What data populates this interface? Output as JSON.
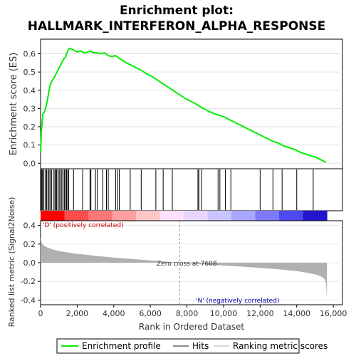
{
  "title_line1": "Enrichment plot:",
  "title_line2": "HALLMARK_INTERFERON_ALPHA_RESPONSE",
  "chart_data": [
    {
      "type": "line",
      "name": "enrichment-score-panel",
      "ylabel": "Enrichment score (ES)",
      "xlim": [
        0,
        16500
      ],
      "ylim": [
        -0.03,
        0.68
      ],
      "yticks": [
        "0.0",
        "0.1",
        "0.2",
        "0.3",
        "0.4",
        "0.5",
        "0.6"
      ],
      "ytick_values": [
        0.0,
        0.1,
        0.2,
        0.3,
        0.4,
        0.5,
        0.6
      ],
      "series": [
        {
          "name": "Enrichment profile",
          "color": "#00ee00",
          "x": [
            0,
            40,
            80,
            120,
            200,
            300,
            380,
            450,
            520,
            620,
            750,
            850,
            950,
            1050,
            1150,
            1250,
            1350,
            1430,
            1500,
            1600,
            1800,
            2000,
            2200,
            2400,
            2600,
            2700,
            2900,
            3100,
            3300,
            3500,
            3700,
            3900,
            4100,
            4300,
            4600,
            4900,
            5200,
            5500,
            5800,
            6100,
            6400,
            6700,
            7000,
            7300,
            7608,
            7900,
            8200,
            8500,
            8800,
            9100,
            9400,
            9700,
            10000,
            10300,
            10600,
            10900,
            11200,
            11500,
            11800,
            12100,
            12400,
            12700,
            13000,
            13300,
            13600,
            13900,
            14200,
            14500,
            14800,
            15000,
            15300,
            15600
          ],
          "y": [
            0.06,
            0.17,
            0.22,
            0.27,
            0.28,
            0.31,
            0.35,
            0.39,
            0.43,
            0.45,
            0.47,
            0.49,
            0.51,
            0.53,
            0.55,
            0.57,
            0.58,
            0.6,
            0.62,
            0.63,
            0.62,
            0.61,
            0.615,
            0.605,
            0.61,
            0.615,
            0.605,
            0.605,
            0.6,
            0.605,
            0.59,
            0.585,
            0.59,
            0.575,
            0.555,
            0.54,
            0.525,
            0.51,
            0.49,
            0.475,
            0.455,
            0.435,
            0.415,
            0.395,
            0.375,
            0.355,
            0.34,
            0.325,
            0.305,
            0.29,
            0.275,
            0.265,
            0.255,
            0.24,
            0.225,
            0.21,
            0.195,
            0.18,
            0.165,
            0.15,
            0.135,
            0.12,
            0.11,
            0.095,
            0.085,
            0.075,
            0.06,
            0.05,
            0.04,
            0.035,
            0.02,
            0.005
          ]
        }
      ]
    },
    {
      "type": "bar",
      "name": "hits-panel",
      "series": [
        {
          "name": "Hits",
          "x": [
            30,
            70,
            110,
            180,
            260,
            330,
            400,
            460,
            520,
            600,
            700,
            780,
            830,
            880,
            950,
            1020,
            1100,
            1160,
            1230,
            1300,
            1360,
            1420,
            1480,
            1540,
            1800,
            2300,
            2700,
            2750,
            3000,
            3100,
            3400,
            3600,
            3700,
            4100,
            4200,
            4300,
            4900,
            5500,
            6300,
            6700,
            7200,
            8600,
            8650,
            8800,
            9700,
            9800,
            10100,
            10400,
            12000,
            12700,
            13200,
            14000,
            14900
          ]
        }
      ]
    },
    {
      "type": "area",
      "name": "ranked-metric-panel",
      "ylabel": "Ranked list metric (Signal2Noise)",
      "xlabel": "Rank in Ordered Dataset",
      "xlim": [
        0,
        16500
      ],
      "ylim": [
        -0.45,
        0.45
      ],
      "xticks": [
        "0",
        "2,000",
        "4,000",
        "6,000",
        "8,000",
        "10,000",
        "12,000",
        "14,000",
        "16,000"
      ],
      "xtick_values": [
        0,
        2000,
        4000,
        6000,
        8000,
        10000,
        12000,
        14000,
        16000
      ],
      "yticks": [
        "0.4",
        "0.2",
        "0.0",
        "-0.2",
        "-0.4"
      ],
      "ytick_values": [
        0.4,
        0.2,
        0.0,
        -0.2,
        -0.4
      ],
      "zero_cross": 7608,
      "series": [
        {
          "name": "Ranking metric scores",
          "x": [
            0,
            10,
            50,
            100,
            200,
            400,
            700,
            1000,
            1500,
            2000,
            3000,
            4000,
            5000,
            6000,
            7000,
            7608,
            8000,
            9000,
            10000,
            11000,
            12000,
            13000,
            13500,
            14000,
            14500,
            15000,
            15300,
            15500,
            15600,
            15650
          ],
          "y": [
            0.28,
            0.26,
            0.22,
            0.2,
            0.18,
            0.16,
            0.14,
            0.125,
            0.11,
            0.095,
            0.075,
            0.055,
            0.04,
            0.025,
            0.01,
            0.0,
            -0.008,
            -0.02,
            -0.03,
            -0.042,
            -0.055,
            -0.07,
            -0.08,
            -0.09,
            -0.105,
            -0.125,
            -0.145,
            -0.17,
            -0.22,
            -0.4
          ]
        }
      ]
    }
  ],
  "annotations": {
    "pos_label": "'D' (positively correlated)",
    "neg_label": "'N' (negatively correlated)",
    "zero_label": "Zero cross at 7608"
  },
  "legend": {
    "items": [
      "Enrichment profile",
      "Hits",
      "Ranking metric scores"
    ]
  },
  "colors": {
    "es_line": "#00ee00",
    "hit": "#000000",
    "metric_fill": "#b0b0b0",
    "pos_label": "#cc0000",
    "neg_label": "#0000aa"
  },
  "heatmap_band": [
    "#ff0000",
    "#ff4d4d",
    "#ff7777",
    "#ff9f9f",
    "#ffc6c6",
    "#ffe0ff",
    "#e8d6ff",
    "#c9c3ff",
    "#a8a6ff",
    "#7e7aff",
    "#4e48f0",
    "#2414d0"
  ]
}
